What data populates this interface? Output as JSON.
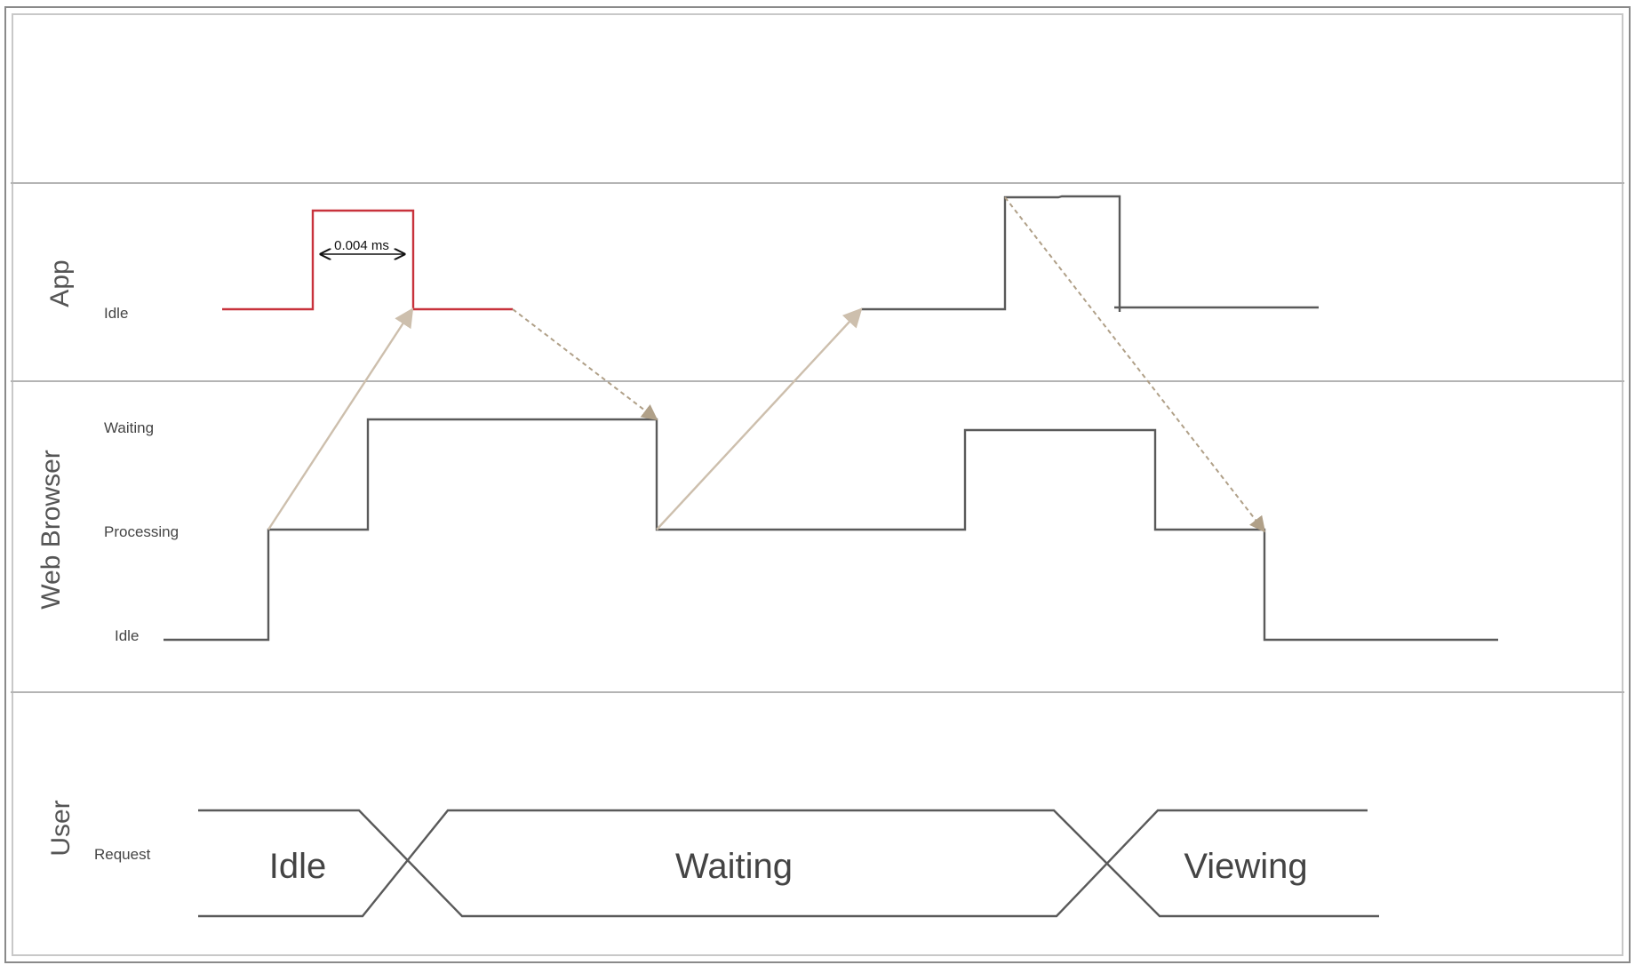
{
  "colors": {
    "frame": "#8a8a8a",
    "divider": "#b4b4b4",
    "signal": "#5a5a5a",
    "highlight": "#c8323c",
    "message": "#cdbfad",
    "message_dashed": "#b0a088",
    "annotation": "#111111"
  },
  "lanes": {
    "app": {
      "title": "App",
      "states": {
        "idle": "Idle"
      }
    },
    "browser": {
      "title": "Web Browser",
      "states": {
        "waiting": "Waiting",
        "processing": "Processing",
        "idle": "Idle"
      }
    },
    "user": {
      "title": "User",
      "states": {
        "request": "Request"
      },
      "phases": [
        "Idle",
        "Waiting",
        "Viewing"
      ]
    }
  },
  "annotations": {
    "duration": "0.004 ms"
  }
}
